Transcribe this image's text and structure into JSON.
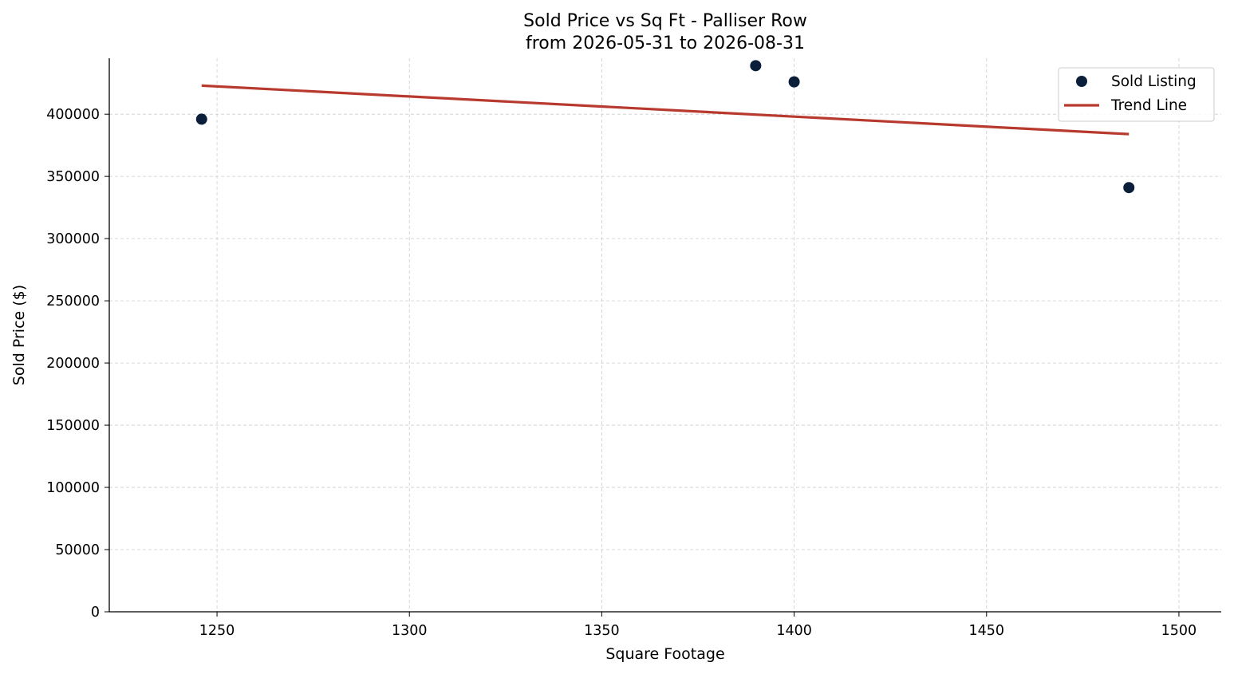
{
  "chart_data": {
    "type": "scatter",
    "title": "Sold Price vs Sq Ft - Palliser Row",
    "subtitle": "from 2026-05-31 to 2026-08-31",
    "xlabel": "Square Footage",
    "ylabel": "Sold Price ($)",
    "xlim": [
      1222,
      1511
    ],
    "ylim": [
      0,
      445000
    ],
    "x_ticks": [
      1250,
      1300,
      1350,
      1400,
      1450,
      1500
    ],
    "y_ticks": [
      0,
      50000,
      100000,
      150000,
      200000,
      250000,
      300000,
      350000,
      400000
    ],
    "grid": true,
    "legend_position": "top-right",
    "series": [
      {
        "name": "Sold Listing",
        "kind": "scatter",
        "color": "#0b1f3a",
        "points": [
          {
            "x": 1246,
            "y": 396000
          },
          {
            "x": 1390,
            "y": 439000
          },
          {
            "x": 1400,
            "y": 426000
          },
          {
            "x": 1487,
            "y": 341000
          }
        ]
      },
      {
        "name": "Trend Line",
        "kind": "line",
        "color": "#b83a2e",
        "points": [
          {
            "x": 1246,
            "y": 423000
          },
          {
            "x": 1487,
            "y": 384000
          }
        ]
      }
    ]
  }
}
